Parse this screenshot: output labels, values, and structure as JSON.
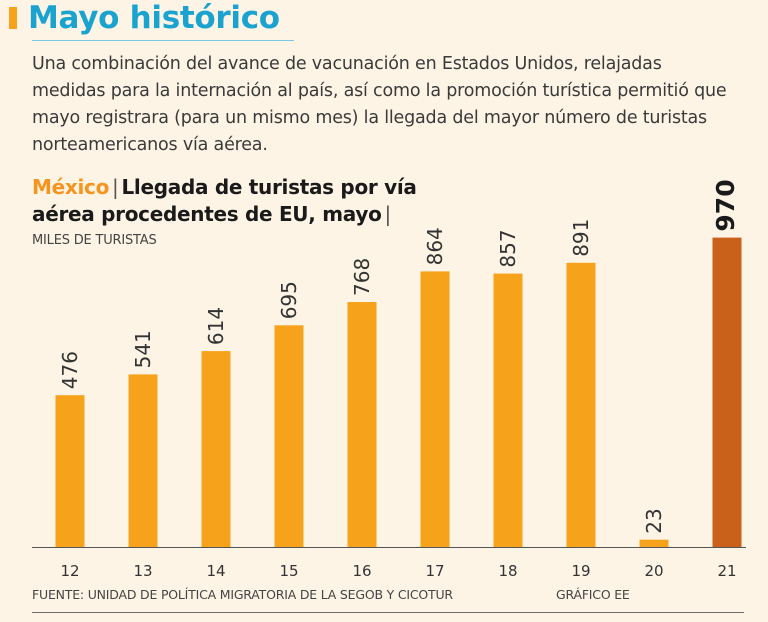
{
  "header": {
    "title": "Mayo histórico",
    "description": "Una combinación del avance de vacunación en Estados Unidos, relajadas medidas para la internación al país, así como la promoción turística permitió que mayo registrara (para un mismo mes) la llegada del mayor número de turistas norteamericanos vía aérea."
  },
  "chart_heading": {
    "country": "México",
    "separator": "|",
    "line1": "Llegada de turistas por vía",
    "line2": "aérea procedentes de EU, mayo",
    "trailing_separator": "|"
  },
  "chart_data": {
    "type": "bar",
    "title": "Llegada de turistas por vía aérea procedentes de EU, mayo",
    "ylabel": "MILES DE TURISTAS",
    "xlabel": "",
    "categories": [
      "12",
      "13",
      "14",
      "15",
      "16",
      "17",
      "18",
      "19",
      "20",
      "21"
    ],
    "values": [
      476,
      541,
      614,
      695,
      768,
      864,
      857,
      891,
      23,
      970
    ],
    "highlight_index": 9,
    "ylim": [
      0,
      1000
    ],
    "grid": false,
    "legend": "none"
  },
  "footer": {
    "source": "FUENTE: UNIDAD DE POLÍTICA MIGRATORIA DE LA SEGOB Y CICOTUR",
    "credit": "GRÁFICO EE"
  },
  "colors": {
    "title": "#1aa3cf",
    "bar": "#f7a21b",
    "bar_highlight": "#c9611b",
    "accent": "#f7941d",
    "background": "#fdf4e5"
  }
}
